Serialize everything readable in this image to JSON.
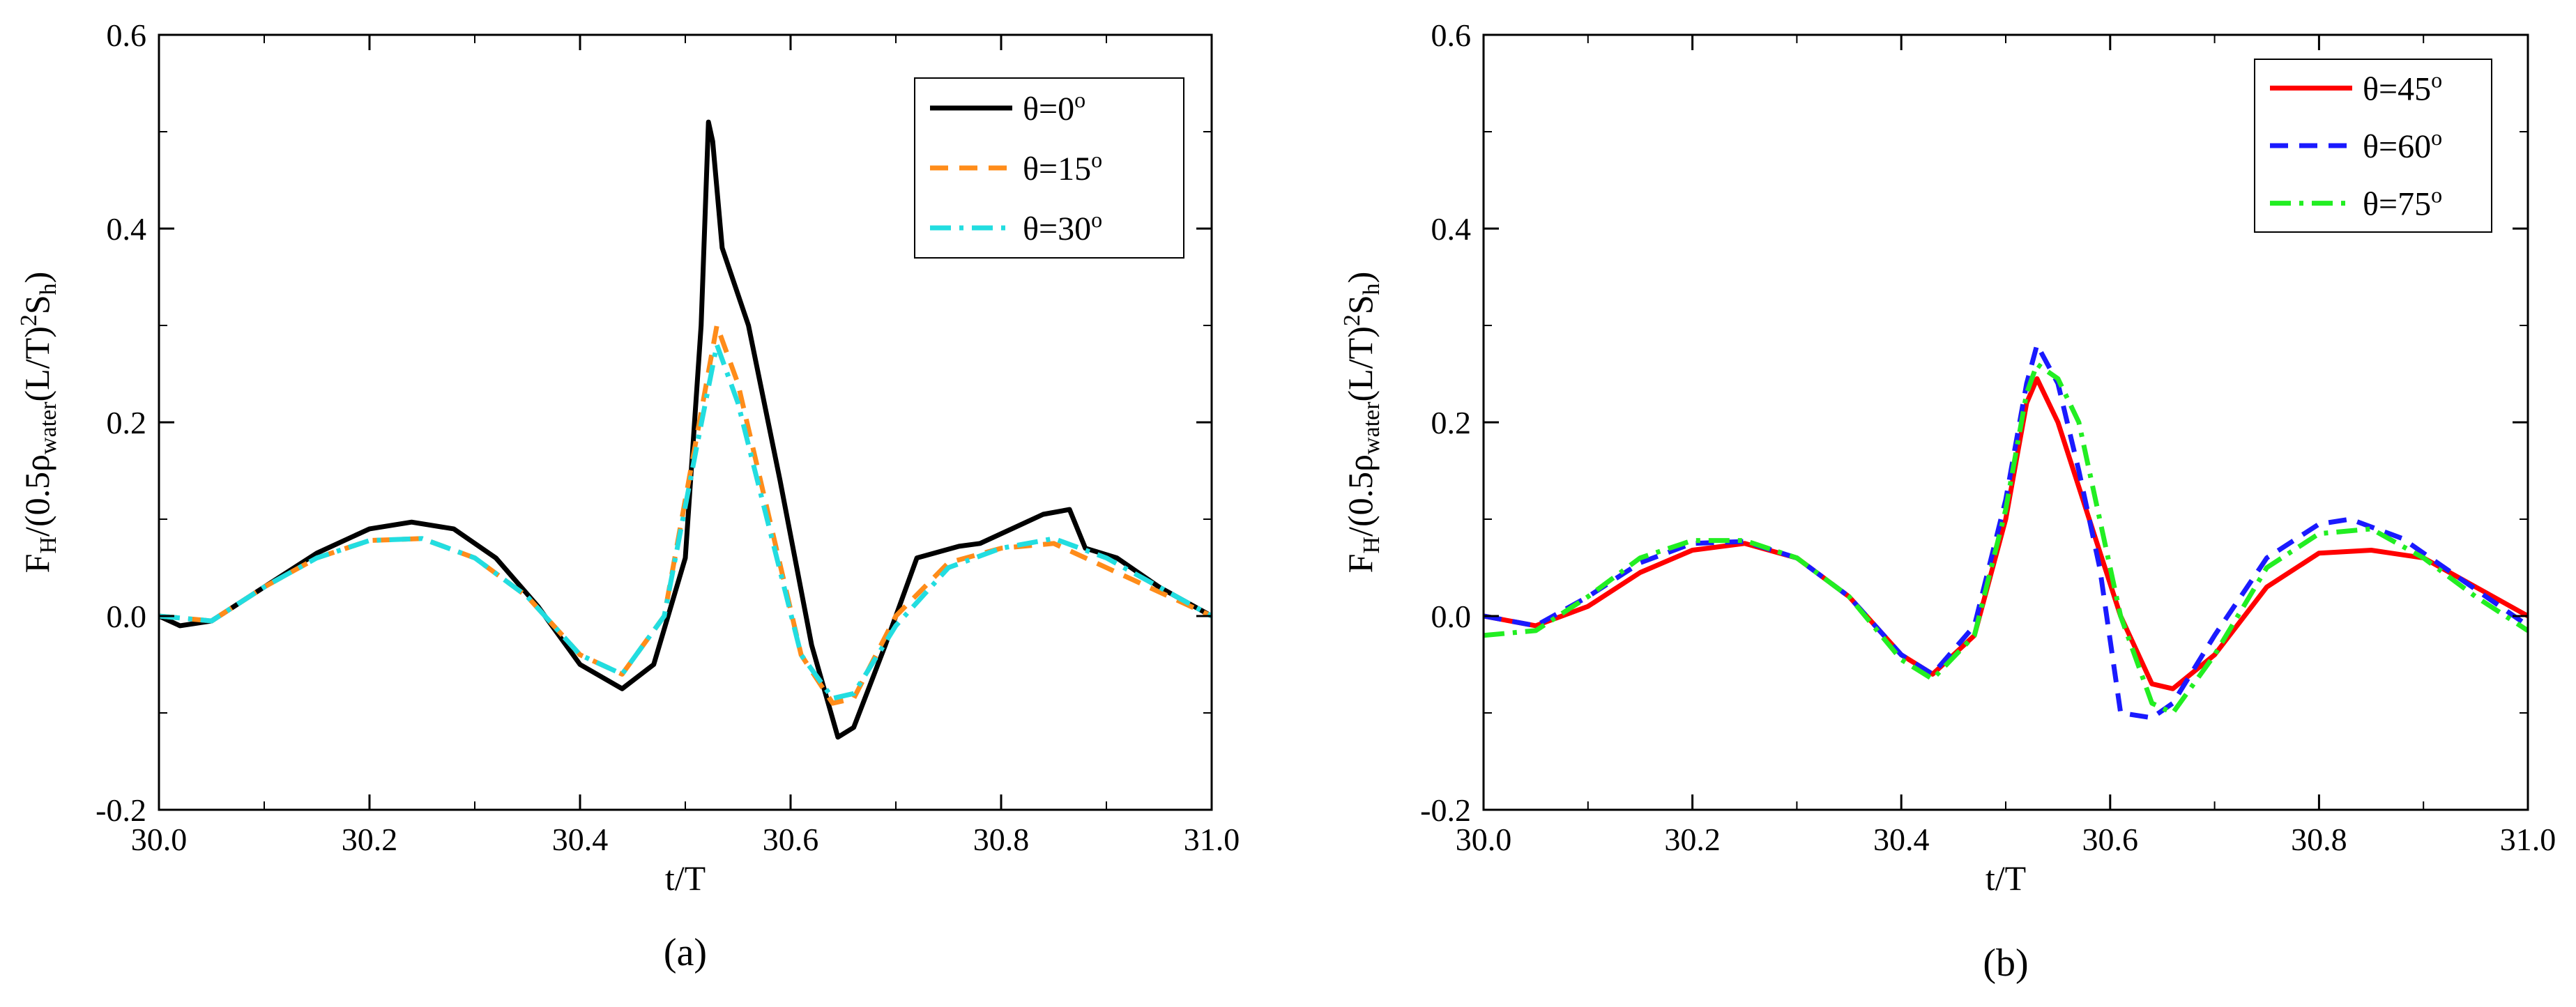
{
  "chart_data": [
    {
      "type": "line",
      "panel_label": "(a)",
      "xlabel": "t/T",
      "ylabel": "F_H/(0.5ρ_water(L/T)^2S_h)",
      "ylabel_parts": {
        "F": "F",
        "H": "H",
        "mid": "/(0.5ρ",
        "water": "water",
        "paren": "(L/T)",
        "two": "2",
        "S": "S",
        "h": "h",
        "close": ")"
      },
      "xlim": [
        30.0,
        31.0
      ],
      "ylim": [
        -0.2,
        0.6
      ],
      "x_ticks": [
        "30.0",
        "30.2",
        "30.4",
        "30.6",
        "30.8",
        "31.0"
      ],
      "y_ticks": [
        "-0.2",
        "0.0",
        "0.2",
        "0.4",
        "0.6"
      ],
      "legend_position": "top-right",
      "series": [
        {
          "name": "θ=0",
          "sup": "o",
          "color": "#000000",
          "dash": "solid",
          "x": [
            30.0,
            30.02,
            30.05,
            30.1,
            30.15,
            30.2,
            30.24,
            30.28,
            30.32,
            30.36,
            30.4,
            30.44,
            30.47,
            30.5,
            30.515,
            30.522,
            30.526,
            30.535,
            30.56,
            30.59,
            30.62,
            30.645,
            30.66,
            30.69,
            30.72,
            30.76,
            30.78,
            30.81,
            30.84,
            30.865,
            30.88,
            30.91,
            30.95,
            31.0
          ],
          "y": [
            0.0,
            -0.01,
            -0.005,
            0.03,
            0.065,
            0.09,
            0.097,
            0.09,
            0.06,
            0.01,
            -0.05,
            -0.075,
            -0.05,
            0.06,
            0.3,
            0.51,
            0.49,
            0.38,
            0.3,
            0.14,
            -0.03,
            -0.125,
            -0.115,
            -0.03,
            0.06,
            0.072,
            0.075,
            0.09,
            0.105,
            0.11,
            0.07,
            0.06,
            0.03,
            0.0
          ]
        },
        {
          "name": "θ=15",
          "sup": "o",
          "color": "#ff8c1a",
          "dash": "dash",
          "x": [
            30.0,
            30.05,
            30.1,
            30.15,
            30.2,
            30.25,
            30.3,
            30.35,
            30.4,
            30.44,
            30.48,
            30.51,
            30.53,
            30.55,
            30.58,
            30.61,
            30.64,
            30.66,
            30.7,
            30.75,
            30.8,
            30.85,
            30.9,
            30.95,
            31.0
          ],
          "y": [
            0.0,
            -0.005,
            0.03,
            0.06,
            0.078,
            0.08,
            0.06,
            0.02,
            -0.04,
            -0.06,
            0.0,
            0.18,
            0.3,
            0.24,
            0.1,
            -0.04,
            -0.09,
            -0.085,
            0.0,
            0.055,
            0.07,
            0.075,
            0.05,
            0.025,
            0.0
          ]
        },
        {
          "name": "θ=30",
          "sup": "o",
          "color": "#22dde0",
          "dash": "dashdot",
          "x": [
            30.0,
            30.05,
            30.1,
            30.15,
            30.2,
            30.25,
            30.3,
            30.35,
            30.4,
            30.44,
            30.48,
            30.51,
            30.53,
            30.55,
            30.58,
            30.61,
            30.64,
            30.66,
            30.7,
            30.75,
            30.8,
            30.85,
            30.9,
            30.95,
            31.0
          ],
          "y": [
            0.0,
            -0.005,
            0.03,
            0.06,
            0.078,
            0.08,
            0.06,
            0.02,
            -0.04,
            -0.06,
            0.0,
            0.17,
            0.28,
            0.22,
            0.09,
            -0.04,
            -0.085,
            -0.08,
            -0.01,
            0.05,
            0.07,
            0.08,
            0.06,
            0.03,
            0.0
          ]
        }
      ]
    },
    {
      "type": "line",
      "panel_label": "(b)",
      "xlabel": "t/T",
      "ylabel": "F_H/(0.5ρ_water(L/T)^2S_h)",
      "ylabel_parts": {
        "F": "F",
        "H": "H",
        "mid": "/(0.5ρ",
        "water": "water",
        "paren": "(L/T)",
        "two": "2",
        "S": "S",
        "h": "h",
        "close": ")"
      },
      "xlim": [
        30.0,
        31.0
      ],
      "ylim": [
        -0.2,
        0.6
      ],
      "x_ticks": [
        "30.0",
        "30.2",
        "30.4",
        "30.6",
        "30.8",
        "31.0"
      ],
      "y_ticks": [
        "-0.2",
        "0.0",
        "0.2",
        "0.4",
        "0.6"
      ],
      "legend_position": "top-right",
      "series": [
        {
          "name": "θ=45",
          "sup": "o",
          "color": "#ff0000",
          "dash": "solid",
          "x": [
            30.0,
            30.05,
            30.1,
            30.15,
            30.2,
            30.25,
            30.3,
            30.35,
            30.4,
            30.43,
            30.47,
            30.5,
            30.52,
            30.53,
            30.55,
            30.58,
            30.61,
            30.64,
            30.66,
            30.7,
            30.75,
            30.8,
            30.85,
            30.9,
            30.95,
            31.0
          ],
          "y": [
            0.0,
            -0.01,
            0.01,
            0.045,
            0.068,
            0.075,
            0.06,
            0.02,
            -0.04,
            -0.06,
            -0.02,
            0.1,
            0.22,
            0.245,
            0.2,
            0.1,
            0.0,
            -0.07,
            -0.075,
            -0.04,
            0.03,
            0.065,
            0.068,
            0.06,
            0.03,
            0.0
          ]
        },
        {
          "name": "θ=60",
          "sup": "o",
          "color": "#1a1aff",
          "dash": "dash",
          "x": [
            30.0,
            30.05,
            30.1,
            30.15,
            30.2,
            30.25,
            30.3,
            30.35,
            30.4,
            30.43,
            30.47,
            30.5,
            30.52,
            30.53,
            30.55,
            30.57,
            30.59,
            30.61,
            30.64,
            30.66,
            30.7,
            30.75,
            30.8,
            30.83,
            30.88,
            30.92,
            30.96,
            31.0
          ],
          "y": [
            0.0,
            -0.01,
            0.02,
            0.055,
            0.075,
            0.077,
            0.06,
            0.02,
            -0.04,
            -0.06,
            -0.01,
            0.12,
            0.24,
            0.28,
            0.24,
            0.15,
            0.05,
            -0.1,
            -0.105,
            -0.09,
            -0.02,
            0.06,
            0.095,
            0.1,
            0.08,
            0.05,
            0.02,
            -0.01
          ]
        },
        {
          "name": "θ=75",
          "sup": "o",
          "color": "#22ee22",
          "dash": "dashdot",
          "x": [
            30.0,
            30.05,
            30.1,
            30.15,
            30.2,
            30.25,
            30.3,
            30.35,
            30.4,
            30.43,
            30.47,
            30.5,
            30.52,
            30.53,
            30.55,
            30.57,
            30.59,
            30.61,
            30.64,
            30.66,
            30.7,
            30.75,
            30.8,
            30.85,
            30.9,
            30.95,
            31.0
          ],
          "y": [
            -0.02,
            -0.015,
            0.02,
            0.06,
            0.078,
            0.078,
            0.06,
            0.02,
            -0.045,
            -0.065,
            -0.02,
            0.11,
            0.23,
            0.26,
            0.245,
            0.2,
            0.1,
            0.0,
            -0.09,
            -0.1,
            -0.04,
            0.05,
            0.085,
            0.09,
            0.06,
            0.02,
            -0.015
          ]
        }
      ]
    }
  ]
}
